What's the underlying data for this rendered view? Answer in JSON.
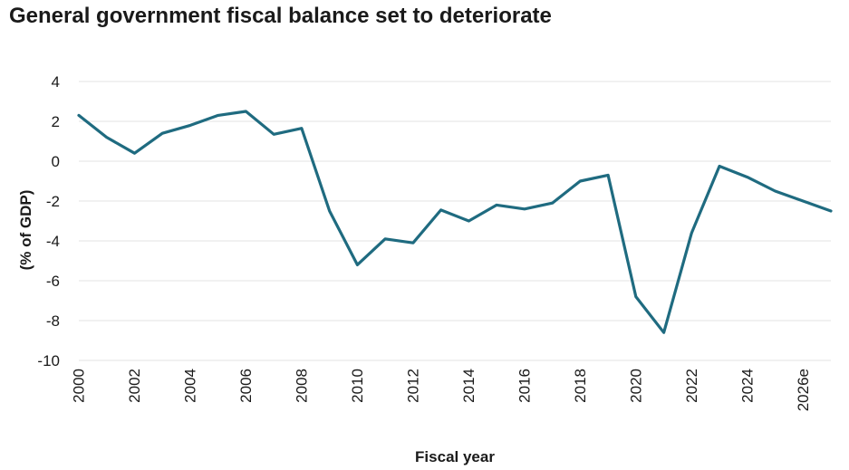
{
  "chart_data": {
    "type": "line",
    "title": "General government fiscal balance set to deteriorate",
    "xlabel": "Fiscal year",
    "ylabel": "(% of GDP)",
    "ylim": [
      -10,
      4
    ],
    "yticks": [
      4,
      2,
      0,
      -2,
      -4,
      -6,
      -8,
      -10
    ],
    "xlim": [
      2000,
      2027
    ],
    "xtick_labels": [
      "2000",
      "2002",
      "2004",
      "2006",
      "2008",
      "2010",
      "2012",
      "2014",
      "2016",
      "2018",
      "2020",
      "2022",
      "2024",
      "2026e"
    ],
    "xtick_values": [
      2000,
      2002,
      2004,
      2006,
      2008,
      2010,
      2012,
      2014,
      2016,
      2018,
      2020,
      2022,
      2024,
      2026
    ],
    "grid": true,
    "line_color": "#1f6b80",
    "series": [
      {
        "x": [
          2000,
          2001,
          2002,
          2003,
          2004,
          2005,
          2006,
          2007,
          2008,
          2009,
          2010,
          2011,
          2012,
          2013,
          2014,
          2015,
          2016,
          2017,
          2018,
          2019,
          2020,
          2021,
          2022,
          2023,
          2024,
          2025,
          2026,
          2027
        ],
        "values": [
          2.3,
          1.2,
          0.4,
          1.4,
          1.8,
          2.3,
          2.5,
          1.35,
          1.65,
          -2.5,
          -5.2,
          -3.9,
          -4.1,
          -2.45,
          -3.0,
          -2.2,
          -2.4,
          -2.1,
          -1.0,
          -0.7,
          -6.8,
          -8.6,
          -3.6,
          -0.25,
          -0.8,
          -1.5,
          -2.0,
          -2.5
        ]
      }
    ]
  }
}
